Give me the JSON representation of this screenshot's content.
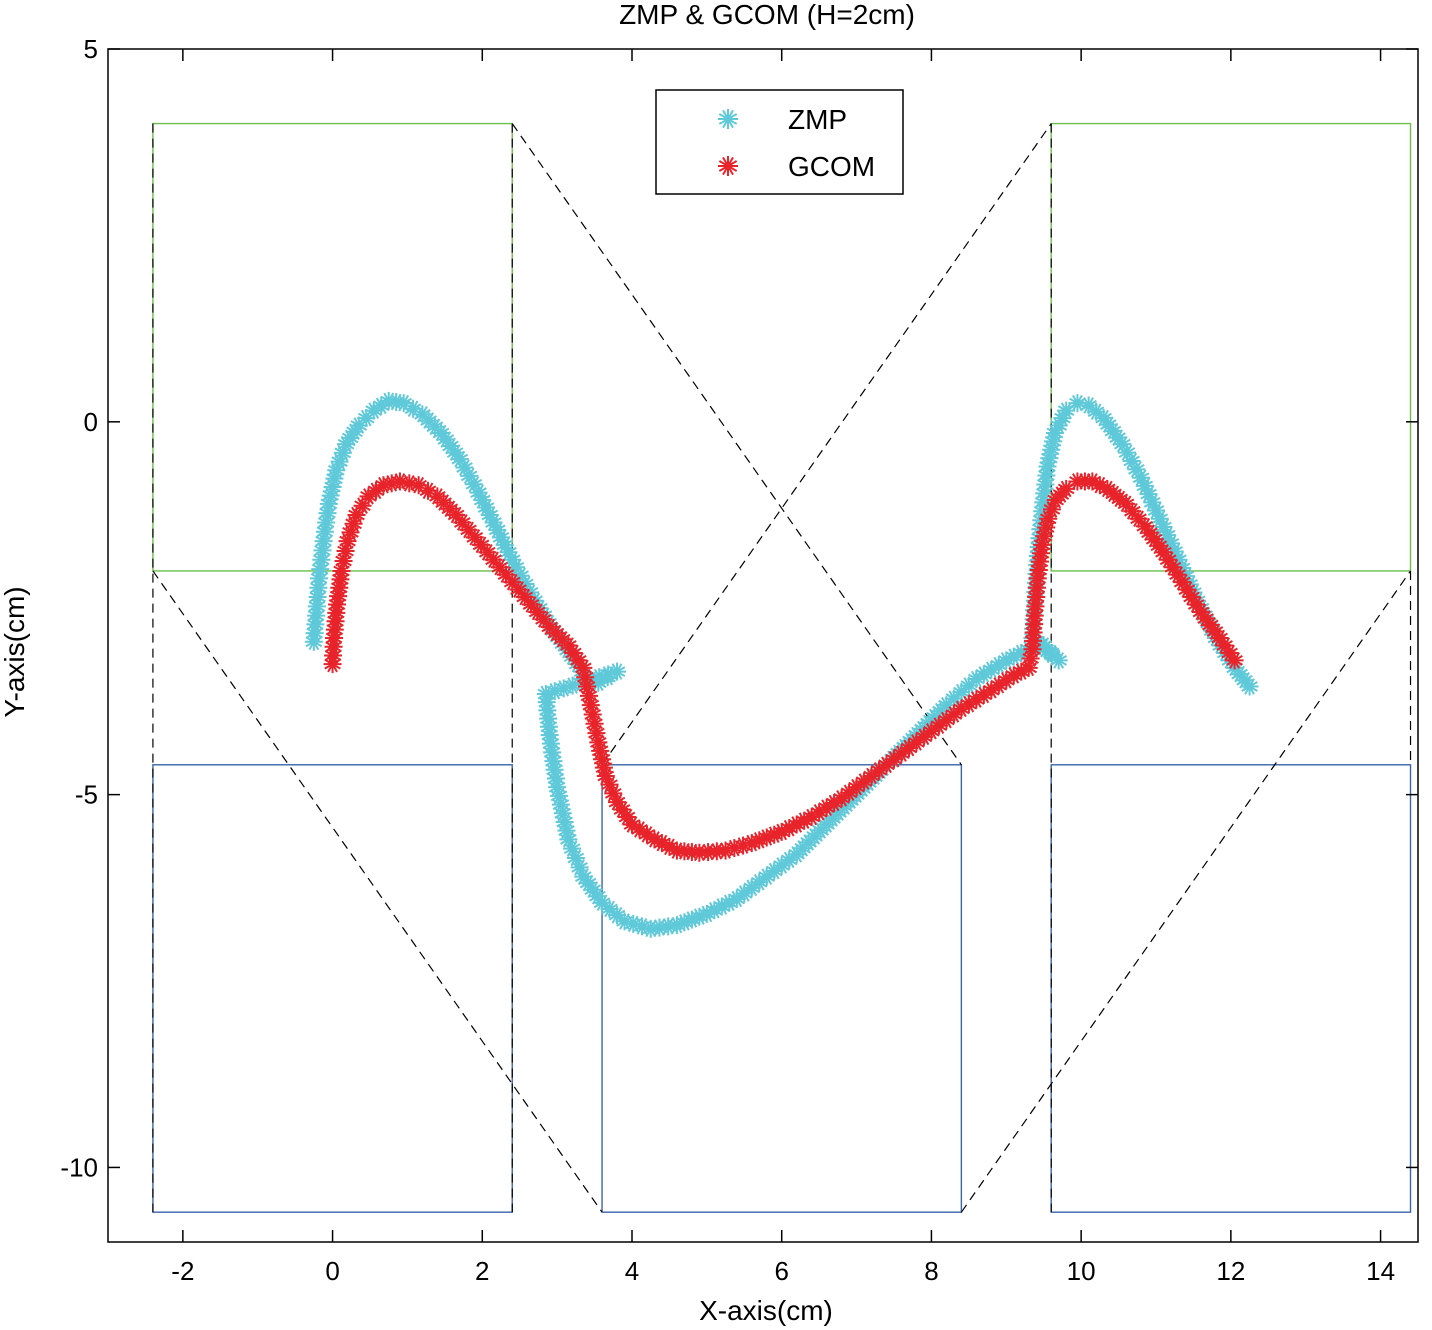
{
  "chart_data": {
    "type": "scatter",
    "title": "ZMP & GCOM (H=2cm)",
    "xlabel": "X-axis(cm)",
    "ylabel": "Y-axis(cm)",
    "xlim": [
      -3,
      14.5
    ],
    "ylim": [
      -11,
      5
    ],
    "xticks": [
      -2,
      0,
      2,
      4,
      6,
      8,
      10,
      12,
      14
    ],
    "yticks": [
      5,
      0,
      -5,
      -10
    ],
    "grid": false,
    "legend": {
      "placement": "top-center",
      "entries": [
        "ZMP",
        "GCOM"
      ]
    },
    "colors": {
      "ZMP": "#5fc9d9",
      "GCOM": "#e8232a",
      "upper_feet": "#6cbf4a",
      "lower_feet": "#3a64a8",
      "support_lines": "#000000"
    },
    "feet": [
      {
        "color": "green",
        "x": [
          -2.4,
          2.4
        ],
        "y": [
          -2,
          4
        ]
      },
      {
        "color": "green",
        "x": [
          9.6,
          14.4
        ],
        "y": [
          -2,
          4
        ]
      },
      {
        "color": "blue",
        "x": [
          -2.4,
          2.4
        ],
        "y": [
          -10.6,
          -4.6
        ]
      },
      {
        "color": "blue",
        "x": [
          3.6,
          8.4
        ],
        "y": [
          -10.6,
          -4.6
        ]
      },
      {
        "color": "blue",
        "x": [
          9.6,
          14.4
        ],
        "y": [
          -10.6,
          -4.6
        ]
      }
    ],
    "support_lines": [
      {
        "x": [
          -2.4,
          -2.4
        ],
        "y": [
          4,
          -10.6
        ]
      },
      {
        "x": [
          2.4,
          2.4
        ],
        "y": [
          4,
          -10.6
        ]
      },
      {
        "x": [
          2.4,
          8.4
        ],
        "y": [
          4,
          -4.6
        ]
      },
      {
        "x": [
          -2.4,
          3.6
        ],
        "y": [
          -2,
          -10.6
        ]
      },
      {
        "x": [
          3.6,
          9.6
        ],
        "y": [
          -4.6,
          4
        ]
      },
      {
        "x": [
          8.4,
          14.4
        ],
        "y": [
          -10.6,
          -2
        ]
      },
      {
        "x": [
          9.6,
          9.6
        ],
        "y": [
          4,
          -10.6
        ]
      },
      {
        "x": [
          14.4,
          14.4
        ],
        "y": [
          -2,
          -4.6
        ]
      }
    ],
    "series": [
      {
        "name": "ZMP",
        "x": [
          -0.25,
          -0.22,
          -0.18,
          -0.12,
          -0.05,
          0.05,
          0.18,
          0.35,
          0.55,
          0.75,
          0.95,
          1.2,
          1.45,
          1.7,
          1.95,
          2.2,
          2.45,
          2.7,
          2.95,
          3.2,
          3.4,
          3.55,
          3.8,
          2.85,
          2.9,
          3.0,
          3.15,
          3.35,
          3.6,
          3.9,
          4.25,
          4.6,
          5.0,
          5.4,
          5.8,
          6.2,
          6.6,
          7.0,
          7.4,
          7.8,
          8.2,
          8.6,
          9.0,
          9.3,
          9.5,
          9.7,
          9.35,
          9.38,
          9.42,
          9.48,
          9.55,
          9.65,
          9.8,
          9.95,
          10.1,
          10.3,
          10.55,
          10.8,
          11.05,
          11.3,
          11.55,
          11.8,
          12.05,
          12.25
        ],
        "y": [
          -2.95,
          -2.6,
          -2.1,
          -1.6,
          -1.1,
          -0.65,
          -0.3,
          -0.05,
          0.15,
          0.28,
          0.25,
          0.1,
          -0.15,
          -0.5,
          -0.95,
          -1.45,
          -1.95,
          -2.4,
          -2.8,
          -3.15,
          -3.45,
          -3.5,
          -3.35,
          -3.65,
          -4.2,
          -4.9,
          -5.6,
          -6.1,
          -6.45,
          -6.7,
          -6.8,
          -6.75,
          -6.6,
          -6.4,
          -6.1,
          -5.8,
          -5.4,
          -5.0,
          -4.6,
          -4.2,
          -3.8,
          -3.45,
          -3.2,
          -3.05,
          -3.0,
          -3.2,
          -2.9,
          -2.4,
          -1.8,
          -1.2,
          -0.6,
          -0.15,
          0.15,
          0.25,
          0.22,
          0.05,
          -0.3,
          -0.75,
          -1.3,
          -1.85,
          -2.4,
          -2.9,
          -3.3,
          -3.55
        ]
      },
      {
        "name": "GCOM",
        "x": [
          0.0,
          0.02,
          0.06,
          0.12,
          0.2,
          0.32,
          0.48,
          0.68,
          0.9,
          1.15,
          1.4,
          1.65,
          1.9,
          2.15,
          2.4,
          2.65,
          2.9,
          3.15,
          3.35,
          3.45,
          3.55,
          3.65,
          3.8,
          4.0,
          4.3,
          4.6,
          4.9,
          5.25,
          5.6,
          6.0,
          6.4,
          6.8,
          7.2,
          7.6,
          8.0,
          8.4,
          8.8,
          9.1,
          9.3,
          9.35,
          9.38,
          9.42,
          9.48,
          9.56,
          9.66,
          9.8,
          9.95,
          10.15,
          10.35,
          10.6,
          10.85,
          11.1,
          11.35,
          11.6,
          11.85,
          12.05
        ],
        "y": [
          -3.25,
          -2.9,
          -2.45,
          -2.0,
          -1.6,
          -1.25,
          -1.0,
          -0.85,
          -0.8,
          -0.85,
          -1.0,
          -1.25,
          -1.55,
          -1.85,
          -2.15,
          -2.45,
          -2.75,
          -3.0,
          -3.3,
          -3.8,
          -4.3,
          -4.75,
          -5.1,
          -5.4,
          -5.6,
          -5.75,
          -5.78,
          -5.75,
          -5.65,
          -5.5,
          -5.3,
          -5.05,
          -4.75,
          -4.45,
          -4.15,
          -3.85,
          -3.6,
          -3.4,
          -3.3,
          -3.05,
          -2.6,
          -2.1,
          -1.65,
          -1.3,
          -1.05,
          -0.9,
          -0.8,
          -0.8,
          -0.9,
          -1.1,
          -1.4,
          -1.75,
          -2.15,
          -2.55,
          -2.9,
          -3.2
        ]
      }
    ]
  }
}
